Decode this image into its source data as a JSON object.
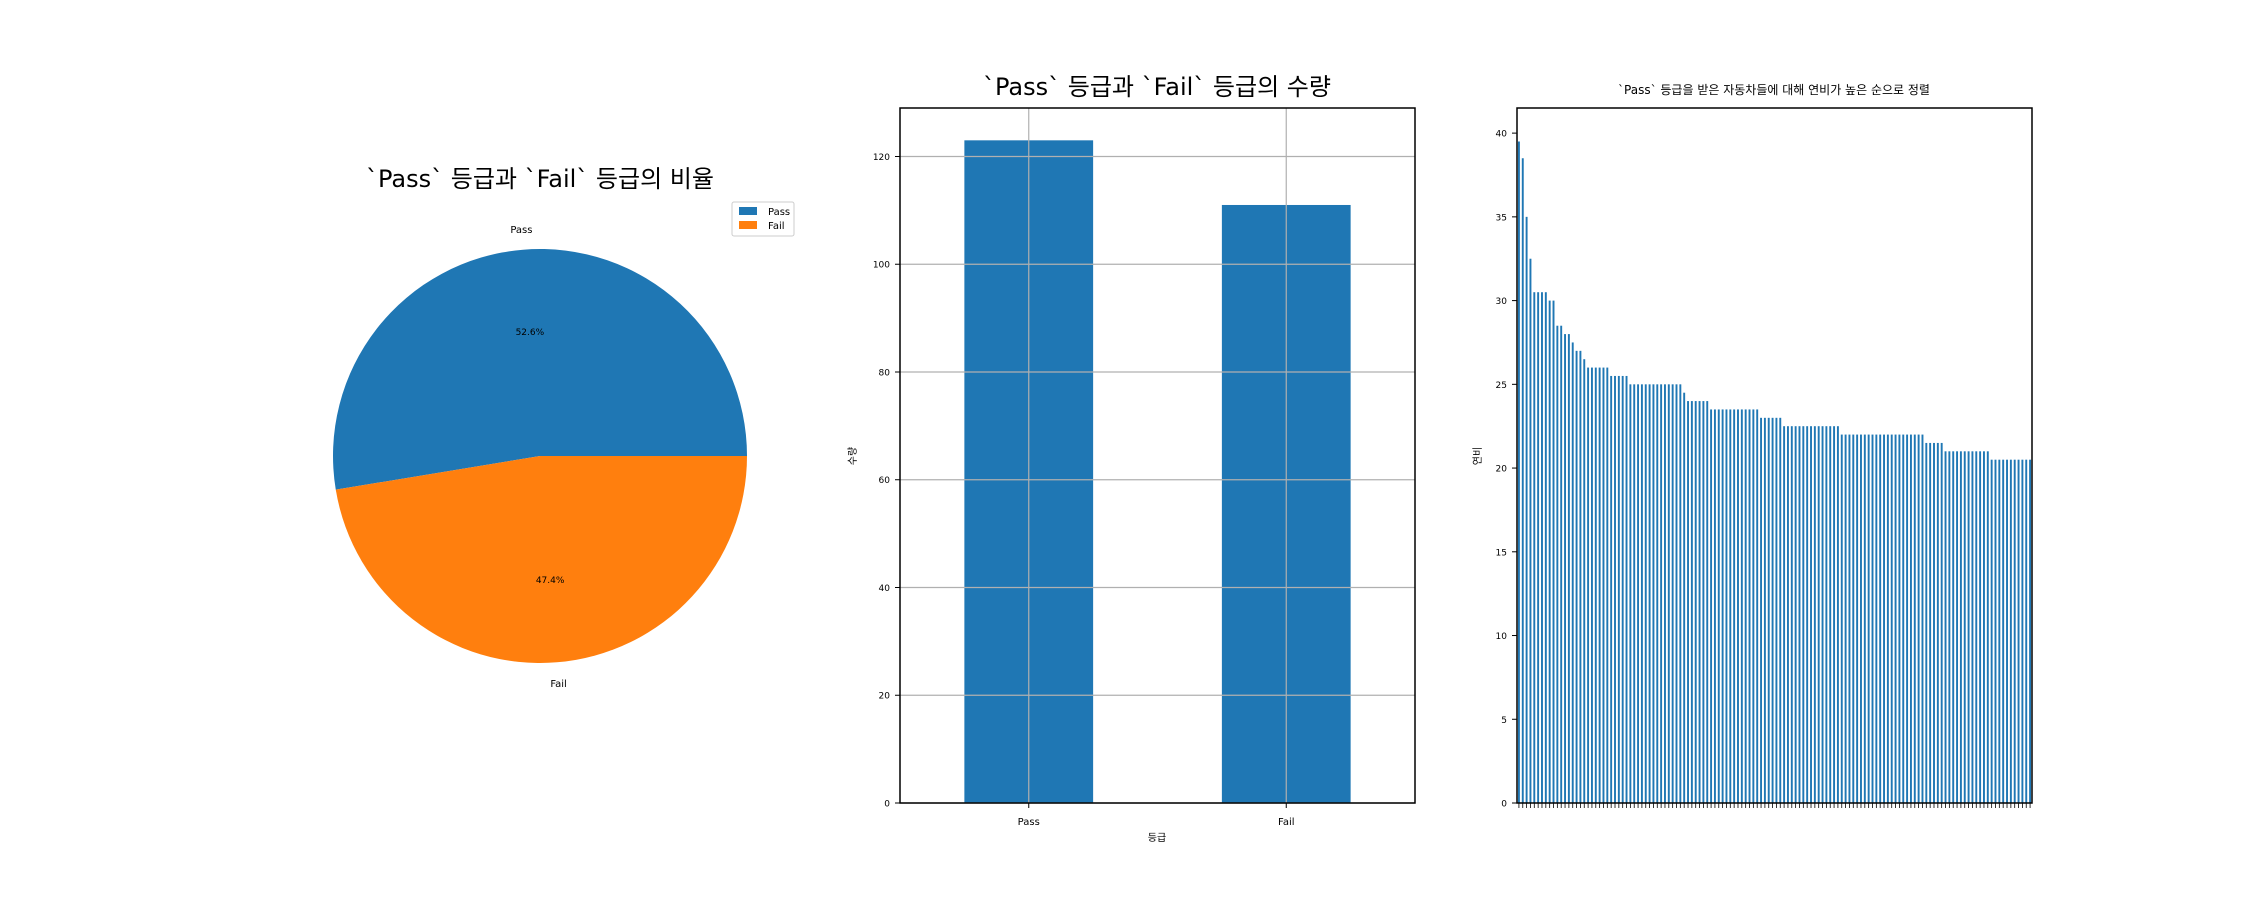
{
  "chart_data": [
    {
      "type": "pie",
      "title": "`Pass` 등급과 `Fail` 등급의 비율",
      "labels": [
        "Pass",
        "Fail"
      ],
      "values": [
        52.6,
        47.4
      ],
      "autopct": [
        "52.6%",
        "47.4%"
      ],
      "colors": [
        "#1f77b4",
        "#ff7f0e"
      ],
      "legend": {
        "entries": [
          "Pass",
          "Fail"
        ],
        "placement": "top-right"
      }
    },
    {
      "type": "bar",
      "title": "`Pass` 등급과 `Fail` 등급의 수량",
      "xlabel": "등급",
      "ylabel": "수량",
      "categories": [
        "Pass",
        "Fail"
      ],
      "values": [
        123,
        111
      ],
      "ylim": [
        0,
        129
      ],
      "yticks": [
        0,
        20,
        40,
        60,
        80,
        100,
        120
      ],
      "grid": true,
      "color": "#1f77b4"
    },
    {
      "type": "bar",
      "title": "`Pass` 등급을 받은 자동차들에 대해 연비가 높은 순으로 정렬",
      "xlabel": "",
      "ylabel": "연비",
      "ylim": [
        0,
        41.5
      ],
      "yticks": [
        0,
        5,
        10,
        15,
        20,
        25,
        30,
        35,
        40
      ],
      "grid": false,
      "color": "#1f77b4",
      "values": [
        39.5,
        38.5,
        35.0,
        32.5,
        30.5,
        30.5,
        30.5,
        30.5,
        30.0,
        30.0,
        28.5,
        28.5,
        28.0,
        28.0,
        27.5,
        27.0,
        27.0,
        26.5,
        26.0,
        26.0,
        26.0,
        26.0,
        26.0,
        26.0,
        25.5,
        25.5,
        25.5,
        25.5,
        25.5,
        25.0,
        25.0,
        25.0,
        25.0,
        25.0,
        25.0,
        25.0,
        25.0,
        25.0,
        25.0,
        25.0,
        25.0,
        25.0,
        25.0,
        24.5,
        24.0,
        24.0,
        24.0,
        24.0,
        24.0,
        24.0,
        23.5,
        23.5,
        23.5,
        23.5,
        23.5,
        23.5,
        23.5,
        23.5,
        23.5,
        23.5,
        23.5,
        23.5,
        23.5,
        23.0,
        23.0,
        23.0,
        23.0,
        23.0,
        23.0,
        22.5,
        22.5,
        22.5,
        22.5,
        22.5,
        22.5,
        22.5,
        22.5,
        22.5,
        22.5,
        22.5,
        22.5,
        22.5,
        22.5,
        22.5,
        22.0,
        22.0,
        22.0,
        22.0,
        22.0,
        22.0,
        22.0,
        22.0,
        22.0,
        22.0,
        22.0,
        22.0,
        22.0,
        22.0,
        22.0,
        22.0,
        22.0,
        22.0,
        22.0,
        22.0,
        22.0,
        22.0,
        21.5,
        21.5,
        21.5,
        21.5,
        21.5,
        21.0,
        21.0,
        21.0,
        21.0,
        21.0,
        21.0,
        21.0,
        21.0,
        21.0,
        21.0,
        21.0,
        21.0,
        20.5,
        20.5,
        20.5,
        20.5,
        20.5,
        20.5,
        20.5,
        20.5,
        20.5,
        20.5,
        20.5
      ]
    }
  ]
}
